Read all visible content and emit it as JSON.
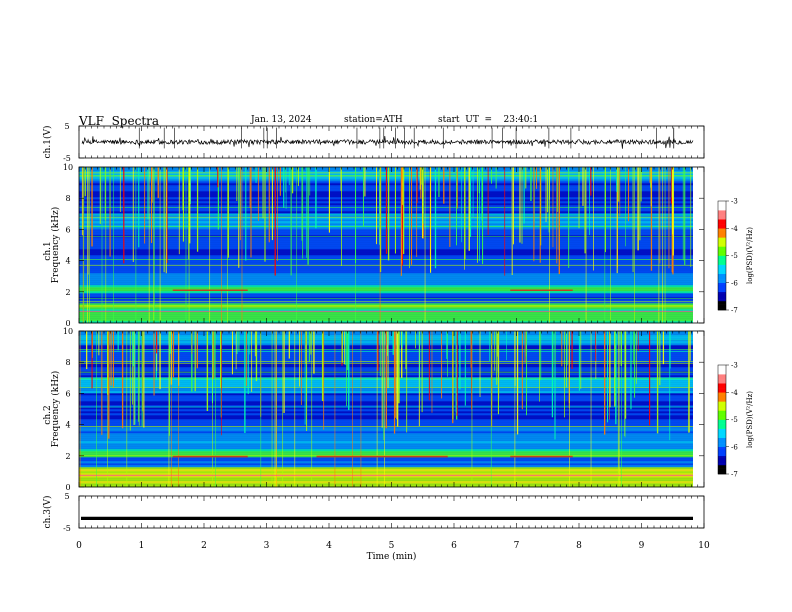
{
  "header": {
    "title": "VLF  Spectra",
    "date": "Jan. 13, 2024",
    "station": "station=ATH",
    "start": "start  UT  =    23:40:1"
  },
  "chart_data": [
    {
      "type": "line",
      "name": "ch1-waveform",
      "ylabel": "ch.1(V)",
      "ylim": [
        -5,
        5
      ],
      "yticks": [
        "5",
        "-5"
      ],
      "xlim": [
        0,
        10
      ],
      "baseline": 0,
      "line_color": "#000000"
    },
    {
      "type": "heatmap",
      "name": "ch1-spectrogram",
      "ylabel": "ch.1\nFrequency (kHz)",
      "ylabel_line1": "ch.1",
      "ylabel_line2": "Frequency (kHz)",
      "ylim": [
        0,
        10
      ],
      "yticks": [
        "0",
        "2",
        "4",
        "6",
        "8",
        "10"
      ],
      "xlim": [
        0,
        9.8
      ],
      "colorbar": {
        "label": "log(PSD)(V²/Hz)",
        "range": [
          -7,
          -3
        ],
        "ticks": [
          "-3",
          "-4",
          "-5",
          "-6",
          "-7"
        ],
        "colors": [
          "#000000",
          "#0000c8",
          "#0064ff",
          "#00c8ff",
          "#00ff80",
          "#80ff00",
          "#ffff00",
          "#ff8000",
          "#ff0000",
          "#ffffff"
        ]
      },
      "features": [
        {
          "band_khz": [
            0.3,
            1.0
          ],
          "level": "high"
        },
        {
          "band_khz": [
            1.9,
            2.3
          ],
          "level": "medium"
        },
        {
          "tone_khz": 2.1,
          "t_min": [
            1.5,
            2.7
          ],
          "color": "#c04020"
        },
        {
          "tone_khz": 2.1,
          "t_min": [
            6.9,
            7.9
          ],
          "color": "#c04020"
        }
      ]
    },
    {
      "type": "heatmap",
      "name": "ch2-spectrogram",
      "ylabel_line1": "ch.2",
      "ylabel_line2": "Frequency (kHz)",
      "ylim": [
        0,
        10
      ],
      "yticks": [
        "0",
        "2",
        "4",
        "6",
        "8",
        "10"
      ],
      "xlim": [
        0,
        9.8
      ],
      "colorbar": {
        "label": "log(PSD)(V²/Hz)",
        "range": [
          -7,
          -3
        ],
        "ticks": [
          "-3",
          "-4",
          "-5",
          "-6",
          "-7"
        ]
      },
      "features": [
        {
          "band_khz": [
            0.3,
            1.2
          ],
          "level": "high"
        },
        {
          "band_khz": [
            1.8,
            2.4
          ],
          "level": "medium"
        },
        {
          "tone_khz": 1.95,
          "t_min": [
            1.5,
            2.7
          ],
          "color": "#c04020"
        },
        {
          "tone_khz": 1.95,
          "t_min": [
            3.8,
            5.9
          ],
          "color": "#c04020"
        },
        {
          "tone_khz": 1.95,
          "t_min": [
            6.9,
            7.9
          ],
          "color": "#c04020"
        }
      ]
    },
    {
      "type": "line",
      "name": "ch3-waveform",
      "ylabel": "ch.3(V)",
      "ylim": [
        -5,
        5
      ],
      "yticks": [
        "5",
        "-5"
      ],
      "xlim": [
        0,
        10
      ],
      "xticks": [
        "0",
        "1",
        "2",
        "3",
        "4",
        "5",
        "6",
        "7",
        "8",
        "9",
        "10"
      ],
      "xlabel": "Time  (min)",
      "baseline": -2
    }
  ]
}
